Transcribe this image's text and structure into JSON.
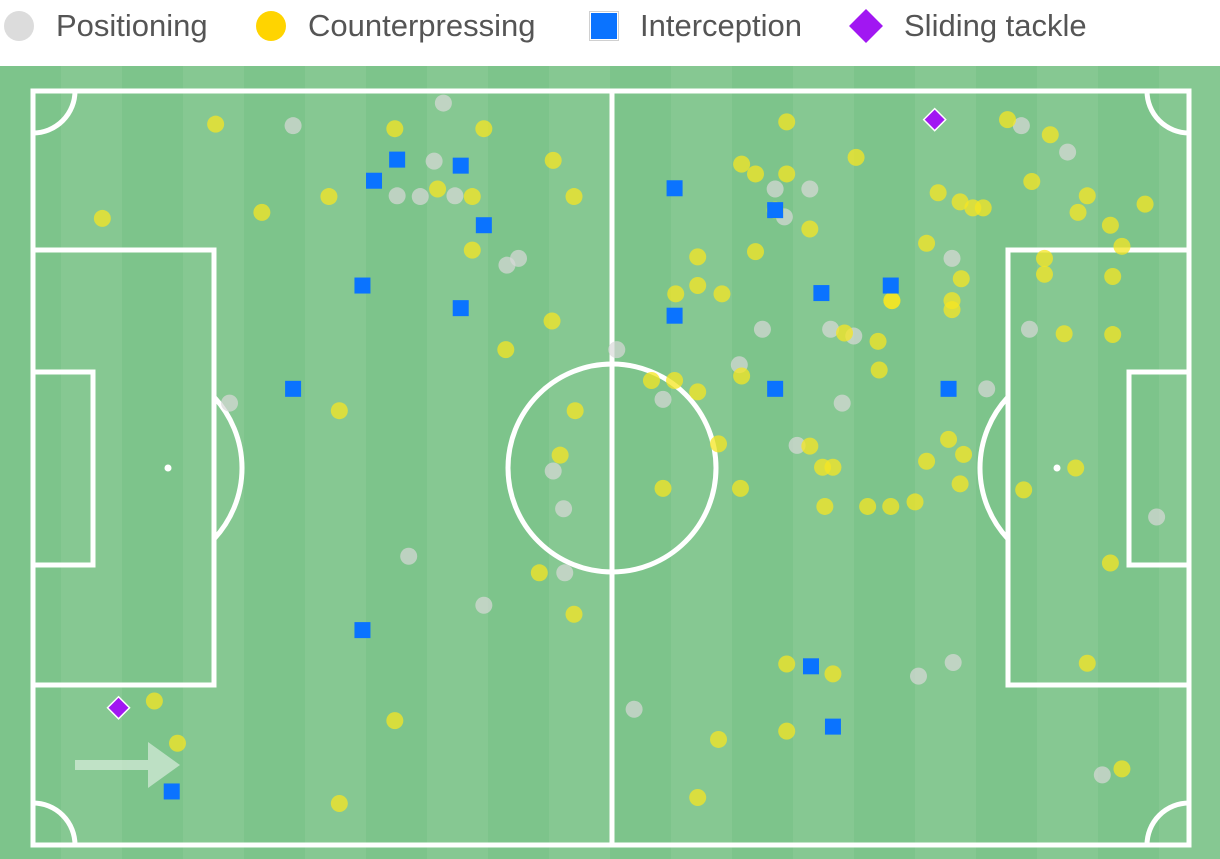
{
  "chart_data": {
    "type": "scatter",
    "title": "",
    "direction_of_play": "left-to-right",
    "x_range": [
      0,
      100
    ],
    "y_range": [
      0,
      100
    ],
    "legend": [
      {
        "name": "Positioning",
        "marker": "circle",
        "color": "#dcdcdc"
      },
      {
        "name": "Counterpressing",
        "marker": "circle",
        "color": "#ffd400"
      },
      {
        "name": "Interception",
        "marker": "square",
        "color": "#0a73ff"
      },
      {
        "name": "Sliding tackle",
        "marker": "diamond",
        "color": "#a117f2"
      }
    ],
    "series": [
      {
        "name": "Positioning",
        "color": "#d9d9d9",
        "points": [
          [
            35.5,
            1.6
          ],
          [
            22.5,
            4.6
          ],
          [
            34.7,
            9.3
          ],
          [
            33.5,
            14.0
          ],
          [
            31.5,
            13.9
          ],
          [
            36.5,
            13.9
          ],
          [
            41.0,
            23.1
          ],
          [
            42.0,
            22.2
          ],
          [
            50.5,
            34.3
          ],
          [
            54.5,
            40.9
          ],
          [
            17.0,
            41.4
          ],
          [
            45.0,
            50.4
          ],
          [
            45.9,
            55.4
          ],
          [
            32.5,
            61.7
          ],
          [
            46.0,
            63.9
          ],
          [
            39.0,
            68.2
          ],
          [
            52.0,
            82.0
          ],
          [
            64.2,
            13.0
          ],
          [
            67.2,
            13.0
          ],
          [
            65.0,
            16.7
          ],
          [
            63.1,
            31.6
          ],
          [
            69.0,
            31.6
          ],
          [
            71.0,
            32.5
          ],
          [
            61.1,
            36.3
          ],
          [
            70.0,
            41.4
          ],
          [
            66.1,
            47.0
          ],
          [
            79.5,
            22.2
          ],
          [
            82.5,
            39.5
          ],
          [
            86.2,
            31.6
          ],
          [
            85.5,
            4.6
          ],
          [
            89.5,
            8.1
          ],
          [
            97.2,
            56.5
          ],
          [
            79.6,
            75.8
          ],
          [
            76.6,
            77.6
          ],
          [
            92.5,
            90.7
          ]
        ]
      },
      {
        "name": "Counterpressing",
        "color": "#f5e623",
        "points": [
          [
            6.0,
            16.9
          ],
          [
            15.8,
            4.4
          ],
          [
            19.8,
            16.1
          ],
          [
            25.6,
            14.0
          ],
          [
            31.3,
            5.0
          ],
          [
            35.0,
            13.0
          ],
          [
            38.0,
            14.0
          ],
          [
            39.0,
            5.0
          ],
          [
            38.0,
            21.1
          ],
          [
            45.0,
            9.2
          ],
          [
            46.8,
            14.0
          ],
          [
            44.9,
            30.5
          ],
          [
            40.9,
            34.3
          ],
          [
            26.5,
            42.4
          ],
          [
            46.9,
            42.4
          ],
          [
            45.6,
            48.3
          ],
          [
            43.8,
            63.9
          ],
          [
            46.8,
            69.4
          ],
          [
            10.5,
            80.9
          ],
          [
            12.5,
            86.5
          ],
          [
            26.5,
            94.5
          ],
          [
            31.3,
            83.5
          ],
          [
            59.3,
            46.8
          ],
          [
            53.5,
            38.4
          ],
          [
            55.5,
            38.4
          ],
          [
            57.5,
            39.9
          ],
          [
            61.3,
            37.8
          ],
          [
            54.5,
            52.7
          ],
          [
            61.2,
            52.7
          ],
          [
            57.5,
            25.8
          ],
          [
            55.6,
            26.9
          ],
          [
            59.6,
            26.9
          ],
          [
            57.5,
            22.0
          ],
          [
            62.5,
            21.3
          ],
          [
            61.3,
            9.7
          ],
          [
            62.5,
            11.0
          ],
          [
            65.2,
            4.1
          ],
          [
            65.2,
            11.0
          ],
          [
            64.2,
            15.8
          ],
          [
            67.2,
            18.3
          ],
          [
            71.2,
            8.8
          ],
          [
            67.2,
            47.1
          ],
          [
            68.3,
            49.9
          ],
          [
            69.2,
            49.9
          ],
          [
            70.2,
            32.1
          ],
          [
            73.1,
            33.2
          ],
          [
            73.2,
            37.0
          ],
          [
            74.3,
            27.8
          ],
          [
            77.3,
            20.2
          ],
          [
            78.3,
            13.5
          ],
          [
            80.2,
            14.7
          ],
          [
            81.3,
            15.5
          ],
          [
            79.5,
            27.8
          ],
          [
            79.5,
            29.0
          ],
          [
            80.3,
            24.9
          ],
          [
            82.2,
            15.5
          ],
          [
            84.3,
            3.8
          ],
          [
            86.4,
            12.0
          ],
          [
            88.0,
            5.8
          ],
          [
            91.2,
            13.9
          ],
          [
            93.2,
            17.8
          ],
          [
            94.2,
            20.6
          ],
          [
            96.2,
            15.0
          ],
          [
            87.5,
            22.2
          ],
          [
            87.5,
            24.3
          ],
          [
            89.2,
            32.2
          ],
          [
            93.4,
            32.3
          ],
          [
            93.4,
            24.6
          ],
          [
            90.2,
            50.0
          ],
          [
            85.7,
            52.9
          ],
          [
            80.5,
            48.2
          ],
          [
            77.3,
            49.1
          ],
          [
            76.3,
            54.5
          ],
          [
            65.2,
            76.0
          ],
          [
            68.5,
            55.1
          ],
          [
            74.2,
            55.1
          ],
          [
            72.2,
            55.1
          ],
          [
            79.2,
            46.2
          ],
          [
            80.2,
            52.1
          ],
          [
            93.2,
            62.6
          ],
          [
            91.2,
            75.9
          ],
          [
            65.2,
            84.9
          ],
          [
            59.3,
            86.0
          ],
          [
            69.2,
            77.3
          ],
          [
            94.2,
            89.9
          ],
          [
            57.5,
            93.7
          ],
          [
            74.3,
            27.8
          ],
          [
            90.4,
            16.1
          ]
        ]
      },
      {
        "name": "Interception",
        "color": "#0a73ff",
        "points": [
          [
            31.5,
            9.1
          ],
          [
            37.0,
            9.9
          ],
          [
            29.5,
            11.9
          ],
          [
            39.0,
            17.8
          ],
          [
            28.5,
            25.8
          ],
          [
            37.0,
            28.8
          ],
          [
            22.5,
            39.5
          ],
          [
            28.5,
            71.5
          ],
          [
            12.0,
            92.9
          ],
          [
            55.5,
            12.9
          ],
          [
            64.2,
            15.8
          ],
          [
            55.5,
            29.8
          ],
          [
            68.2,
            26.8
          ],
          [
            74.2,
            25.8
          ],
          [
            64.2,
            39.5
          ],
          [
            79.2,
            39.5
          ],
          [
            67.3,
            76.3
          ],
          [
            69.2,
            84.3
          ]
        ]
      },
      {
        "name": "Sliding tackle",
        "color": "#a117f2",
        "points": [
          [
            78.0,
            3.8
          ],
          [
            7.4,
            81.8
          ]
        ]
      }
    ]
  }
}
